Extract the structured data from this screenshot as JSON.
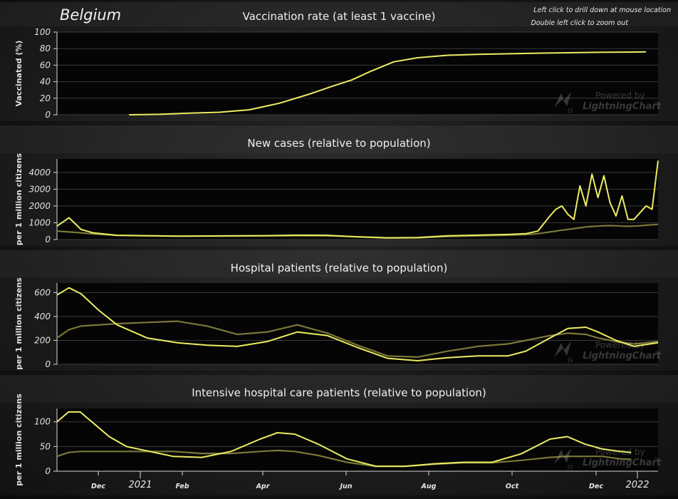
{
  "header": {
    "country": "Belgium",
    "hint_line_1": "Left click to drill down at mouse location",
    "hint_line_2": "Double left click to zoom out"
  },
  "watermark": {
    "line1": "Powered by",
    "line2": "LightningChart",
    "mark": "JS",
    "reg": "®"
  },
  "x_axis": {
    "ticks": [
      {
        "label": "Dec",
        "major": false
      },
      {
        "label": "2021",
        "major": true
      },
      {
        "label": "Feb",
        "major": false
      },
      {
        "label": "Apr",
        "major": false
      },
      {
        "label": "Jun",
        "major": false
      },
      {
        "label": "Aug",
        "major": false
      },
      {
        "label": "Oct",
        "major": false
      },
      {
        "label": "Dec",
        "major": false
      },
      {
        "label": "2022",
        "major": true
      }
    ]
  },
  "colors": {
    "primary": "#ecec62",
    "secondary": "#7a7838",
    "grid": "#3a3a3a",
    "axis": "#d8d8d8"
  },
  "chart_data": [
    {
      "type": "line",
      "title": "Vaccination rate (at least 1 vaccine)",
      "ylabel": "Vaccinated (%)",
      "ylim": [
        0,
        100
      ],
      "yticks": [
        "0",
        "20",
        "40",
        "60",
        "80",
        "100"
      ],
      "x": [
        0.12,
        0.17,
        0.22,
        0.27,
        0.32,
        0.37,
        0.42,
        0.46,
        0.49,
        0.52,
        0.56,
        0.6,
        0.65,
        0.7,
        0.8,
        0.9,
        0.98
      ],
      "series": [
        {
          "values": [
            0,
            0.5,
            2,
            3,
            6,
            14,
            25,
            35,
            42,
            52,
            64,
            69,
            72,
            73,
            74.5,
            75.5,
            76
          ]
        }
      ],
      "grid": true
    },
    {
      "type": "line",
      "title": "New cases (relative to population)",
      "ylabel": "per 1 million citizens",
      "ylim": [
        0,
        4800
      ],
      "yticks": [
        "0",
        "1000",
        "2000",
        "3000",
        "4000"
      ],
      "x": [
        0,
        0.02,
        0.04,
        0.06,
        0.1,
        0.2,
        0.3,
        0.35,
        0.4,
        0.45,
        0.5,
        0.55,
        0.6,
        0.65,
        0.7,
        0.75,
        0.78,
        0.8,
        0.82,
        0.83,
        0.84,
        0.85,
        0.86,
        0.87,
        0.88,
        0.89,
        0.9,
        0.91,
        0.92,
        0.93,
        0.94,
        0.95,
        0.96,
        0.97,
        0.98,
        0.99,
        1.0
      ],
      "series": [
        {
          "values": [
            800,
            1300,
            600,
            400,
            250,
            200,
            220,
            230,
            260,
            250,
            160,
            100,
            120,
            220,
            260,
            300,
            350,
            500,
            1400,
            1800,
            2000,
            1500,
            1200,
            3200,
            2000,
            3900,
            2500,
            3800,
            2200,
            1400,
            2600,
            1200,
            1200,
            1600,
            2000,
            1800,
            4700
          ]
        },
        {
          "values": [
            500,
            450,
            400,
            330,
            250,
            200,
            210,
            220,
            230,
            220,
            160,
            90,
            100,
            180,
            220,
            260,
            290,
            350,
            450,
            500,
            560,
            600,
            650,
            700,
            750,
            780,
            800,
            820,
            830,
            820,
            800,
            790,
            800,
            820,
            850,
            880,
            900
          ]
        }
      ],
      "grid": true
    },
    {
      "type": "line",
      "title": "Hospital patients (relative to population)",
      "ylabel": "per 1 million citizens",
      "ylim": [
        0,
        680
      ],
      "yticks": [
        "0",
        "200",
        "400",
        "600"
      ],
      "x": [
        0,
        0.02,
        0.04,
        0.07,
        0.1,
        0.15,
        0.2,
        0.25,
        0.3,
        0.35,
        0.4,
        0.45,
        0.5,
        0.55,
        0.6,
        0.65,
        0.7,
        0.75,
        0.78,
        0.82,
        0.85,
        0.88,
        0.9,
        0.93,
        0.96,
        1.0
      ],
      "series": [
        {
          "values": [
            580,
            640,
            590,
            450,
            330,
            220,
            180,
            160,
            150,
            190,
            270,
            240,
            140,
            50,
            30,
            55,
            70,
            70,
            110,
            220,
            300,
            310,
            270,
            200,
            150,
            180
          ]
        },
        {
          "values": [
            220,
            290,
            320,
            330,
            340,
            350,
            360,
            320,
            250,
            270,
            330,
            260,
            160,
            70,
            60,
            110,
            150,
            170,
            200,
            240,
            260,
            250,
            220,
            190,
            170,
            190
          ]
        }
      ],
      "grid": true
    },
    {
      "type": "line",
      "title": "Intensive hospital care patients (relative to population)",
      "ylabel": "per 1 million citizens",
      "ylim": [
        0,
        127
      ],
      "yticks": [
        "0",
        "50",
        "100"
      ],
      "x": [
        0,
        0.02,
        0.04,
        0.06,
        0.09,
        0.12,
        0.16,
        0.2,
        0.25,
        0.3,
        0.35,
        0.38,
        0.41,
        0.45,
        0.5,
        0.55,
        0.6,
        0.65,
        0.7,
        0.75,
        0.8,
        0.85,
        0.88,
        0.91,
        0.94,
        0.97,
        0.99
      ],
      "series": [
        {
          "values": [
            100,
            120,
            120,
            100,
            70,
            50,
            40,
            30,
            28,
            40,
            65,
            78,
            75,
            55,
            25,
            10,
            10,
            15,
            18,
            18,
            35,
            65,
            70,
            55,
            45,
            40,
            38
          ]
        },
        {
          "values": [
            30,
            38,
            40,
            40,
            40,
            40,
            40,
            40,
            36,
            36,
            40,
            42,
            40,
            32,
            18,
            10,
            10,
            14,
            17,
            17,
            22,
            28,
            30,
            30,
            30,
            25,
            24
          ]
        }
      ],
      "grid": true
    }
  ]
}
